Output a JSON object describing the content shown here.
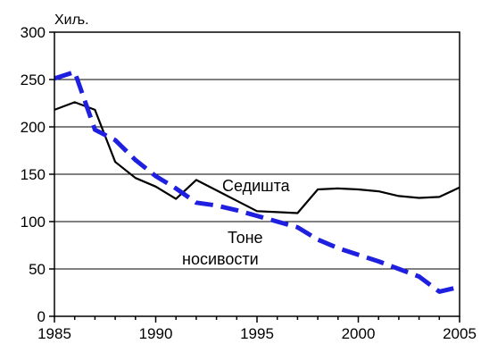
{
  "chart_data": {
    "type": "line",
    "title": "",
    "xlabel": "",
    "ylabel": "",
    "y_unit_label": "Хиљ.",
    "xlim": [
      1985,
      2005
    ],
    "ylim": [
      0,
      300
    ],
    "x_ticks": [
      1985,
      1990,
      1995,
      2000,
      2005
    ],
    "y_ticks": [
      0,
      50,
      100,
      150,
      200,
      250,
      300
    ],
    "grid": "horizontal",
    "legend": "none (inline annotations)",
    "series": [
      {
        "name": "Седишта",
        "style": "solid",
        "color": "#000000",
        "x": [
          1985,
          1986,
          1987,
          1988,
          1989,
          1990,
          1991,
          1992,
          1993,
          1994,
          1995,
          1996,
          1997,
          1998,
          1999,
          2000,
          2001,
          2002,
          2003,
          2004,
          2005
        ],
        "y": [
          218,
          226,
          218,
          163,
          146,
          137,
          124,
          144,
          133,
          122,
          111,
          110,
          109,
          134,
          135,
          134,
          132,
          127,
          125,
          126,
          136
        ]
      },
      {
        "name": "Тоне носивости",
        "style": "dashed",
        "color": "#1f1fe0",
        "x": [
          1985,
          1986,
          1987,
          1988,
          1989,
          1990,
          1991,
          1992,
          1993,
          1994,
          1995,
          1996,
          1997,
          1998,
          1999,
          2000,
          2001,
          2002,
          2003,
          2004,
          2005
        ],
        "y": [
          251,
          258,
          197,
          186,
          165,
          148,
          135,
          120,
          117,
          112,
          106,
          100,
          94,
          81,
          72,
          65,
          58,
          50,
          42,
          26,
          31
        ]
      }
    ],
    "annotations": [
      {
        "text": "Седишта",
        "series": 0
      },
      {
        "text_line1": "Тоне",
        "text_line2": "носивости",
        "series": 1
      }
    ]
  }
}
